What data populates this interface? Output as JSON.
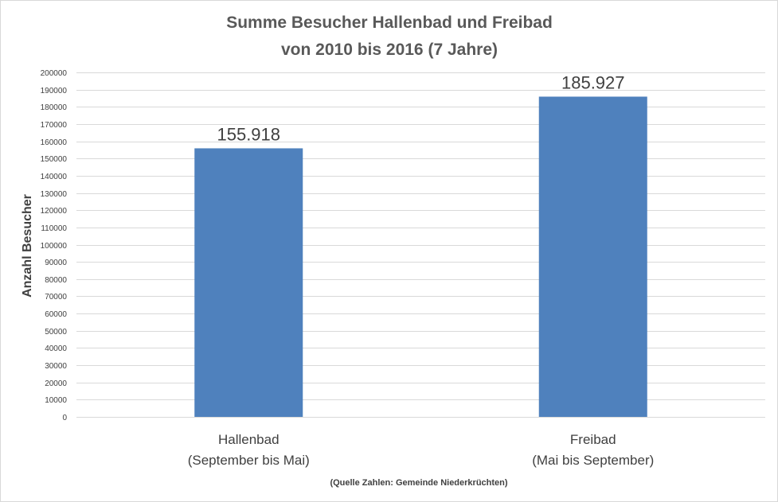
{
  "chart_data": {
    "type": "bar",
    "title": [
      "Summe Besucher Hallenbad und Freibad",
      "von 2010 bis 2016  (7 Jahre)"
    ],
    "ylabel": "Anzahl Besucher",
    "xlabel": "",
    "categories": [
      [
        "Hallenbad",
        "(September bis Mai)"
      ],
      [
        "Freibad",
        "(Mai bis September)"
      ]
    ],
    "values": [
      155918,
      185927
    ],
    "data_labels": [
      "155.918",
      "185.927"
    ],
    "ylim": [
      0,
      200000
    ],
    "y_ticks": [
      0,
      10000,
      20000,
      30000,
      40000,
      50000,
      60000,
      70000,
      80000,
      90000,
      100000,
      110000,
      120000,
      130000,
      140000,
      150000,
      160000,
      170000,
      180000,
      190000,
      200000
    ],
    "grid": true,
    "legend": "none",
    "bar_color": "#4f81bd",
    "source_note": "(Quelle Zahlen: Gemeinde Niederkrüchten)"
  }
}
